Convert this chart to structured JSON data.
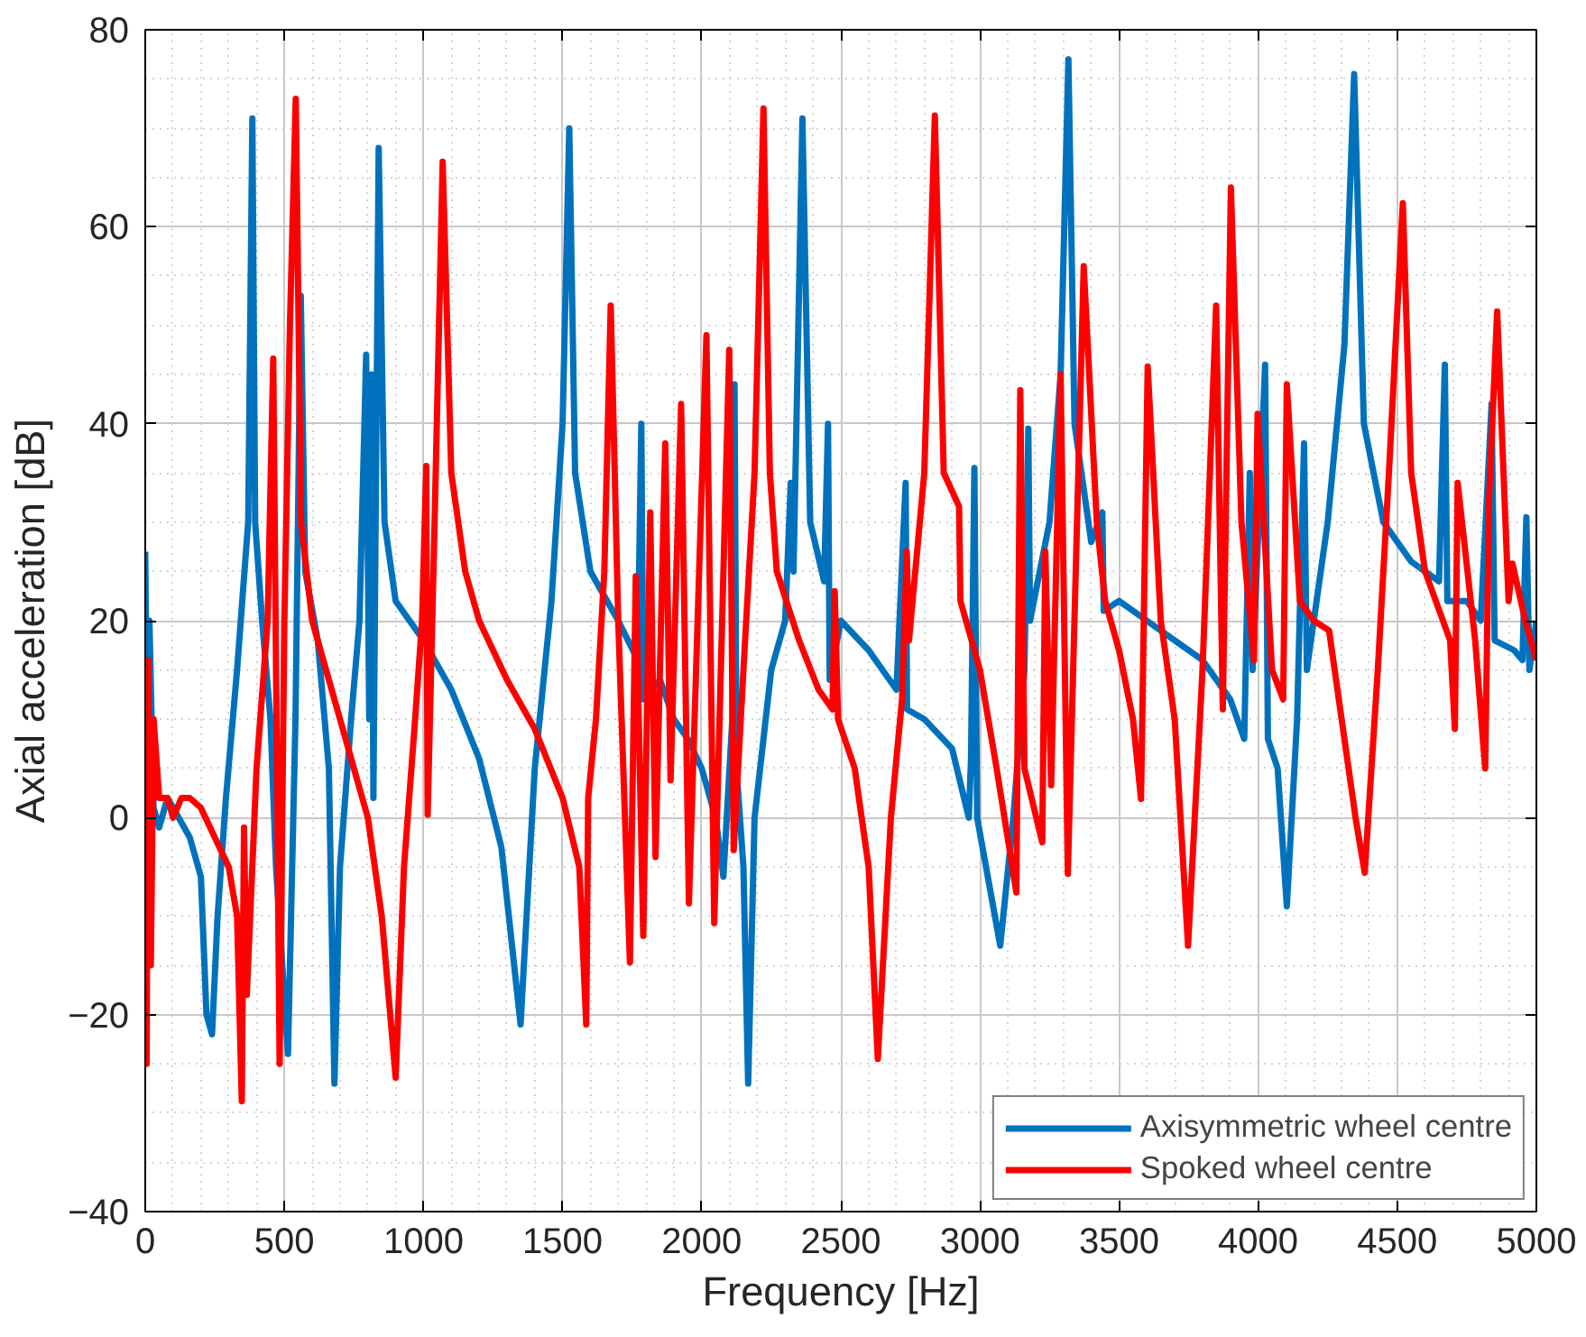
{
  "chart_data": {
    "type": "line",
    "xlabel": "Frequency [Hz]",
    "ylabel": "Axial acceleration [dB]",
    "xlim": [
      0,
      5000
    ],
    "ylim": [
      -40,
      80
    ],
    "xticks": [
      0,
      500,
      1000,
      1500,
      2000,
      2500,
      3000,
      3500,
      4000,
      4500,
      5000
    ],
    "yticks": [
      -40,
      -20,
      0,
      20,
      40,
      60,
      80
    ],
    "grid": true,
    "legend": "bottom right",
    "line_style": "solid",
    "series": [
      {
        "name": "Axisymmetric wheel centre",
        "color": "#0072bd",
        "x": [
          0,
          5,
          15,
          30,
          50,
          80,
          120,
          160,
          200,
          220,
          240,
          260,
          290,
          330,
          370,
          385,
          395,
          420,
          450,
          470,
          513,
          540,
          559,
          575,
          620,
          660,
          680,
          700,
          740,
          770,
          794,
          805,
          813,
          820,
          839,
          860,
          900,
          1000,
          1100,
          1200,
          1280,
          1349,
          1400,
          1460,
          1500,
          1524,
          1545,
          1600,
          1700,
          1770,
          1783,
          1790,
          1850,
          1900,
          1950,
          2000,
          2050,
          2078,
          2110,
          2118,
          2125,
          2150,
          2167,
          2190,
          2250,
          2300,
          2320,
          2330,
          2362,
          2390,
          2440,
          2454,
          2460,
          2500,
          2600,
          2700,
          2733,
          2738,
          2800,
          2900,
          2960,
          2968,
          2980,
          2990,
          3073,
          3120,
          3160,
          3174,
          3180,
          3250,
          3290,
          3318,
          3340,
          3400,
          3440,
          3445,
          3500,
          3600,
          3700,
          3800,
          3900,
          3950,
          3970,
          3980,
          4025,
          4035,
          4070,
          4103,
          4140,
          4165,
          4175,
          4200,
          4250,
          4310,
          4345,
          4380,
          4450,
          4550,
          4650,
          4671,
          4680,
          4750,
          4800,
          4839,
          4850,
          4920,
          4950,
          4964,
          4975,
          5000
        ],
        "values": [
          27,
          10,
          20,
          1,
          -1,
          2,
          0,
          -2,
          -6,
          -20,
          -22,
          -10,
          2,
          15,
          30,
          71,
          30,
          20,
          10,
          -5,
          -24,
          10,
          53,
          25,
          18,
          5,
          -27,
          -5,
          10,
          20,
          47,
          10,
          45,
          2,
          68,
          30,
          22,
          18,
          13,
          6,
          -3,
          -21,
          5,
          22,
          40,
          70,
          35,
          25,
          20,
          16,
          40,
          12,
          14,
          10,
          8,
          5,
          0,
          -6,
          10,
          44,
          5,
          -5,
          -27,
          0,
          15,
          20,
          34,
          25,
          71,
          30,
          24,
          40,
          14,
          20,
          17,
          13,
          34,
          11,
          10,
          7,
          0,
          6,
          35.5,
          0,
          -13,
          0,
          15,
          39.5,
          20,
          30,
          45,
          77,
          40,
          28,
          31,
          21,
          22,
          20,
          18,
          16,
          12,
          8,
          35,
          15,
          46,
          8,
          5,
          -9,
          10,
          38,
          15,
          20,
          30,
          48,
          75.5,
          40,
          30,
          26,
          24,
          46,
          22,
          22,
          20,
          42,
          18,
          17,
          16,
          30.5,
          15,
          20
        ]
      },
      {
        "name": "Spoked wheel centre",
        "color": "#ff0000",
        "x": [
          0,
          5,
          10,
          20,
          30,
          50,
          80,
          100,
          130,
          160,
          200,
          250,
          300,
          330,
          347,
          355,
          365,
          400,
          440,
          460,
          483,
          500,
          520,
          541,
          560,
          600,
          650,
          700,
          750,
          800,
          850,
          900,
          930,
          970,
          995,
          1010,
          1015,
          1040,
          1069,
          1100,
          1150,
          1200,
          1300,
          1400,
          1500,
          1560,
          1585,
          1592,
          1620,
          1650,
          1673,
          1700,
          1742,
          1763,
          1790,
          1815,
          1834,
          1869,
          1888,
          1926,
          1954,
          2017,
          2045,
          2099,
          2115,
          2150,
          2190,
          2222,
          2245,
          2270,
          2350,
          2420,
          2470,
          2478,
          2490,
          2550,
          2600,
          2633,
          2680,
          2720,
          2737,
          2745,
          2800,
          2838,
          2870,
          2925,
          2930,
          3000,
          3060,
          3131,
          3145,
          3160,
          3224,
          3235,
          3256,
          3290,
          3316,
          3373,
          3420,
          3450,
          3500,
          3550,
          3579,
          3603,
          3650,
          3700,
          3748,
          3800,
          3849,
          3873,
          3902,
          3940,
          3985,
          3998,
          4050,
          4090,
          4103,
          4150,
          4200,
          4255,
          4300,
          4350,
          4383,
          4430,
          4470,
          4520,
          4550,
          4600,
          4690,
          4707,
          4717,
          4780,
          4816,
          4830,
          4859,
          4900,
          4914,
          4960,
          5000
        ],
        "values": [
          16,
          -25,
          16,
          -15,
          10,
          2,
          2,
          0,
          2,
          2,
          1,
          -2,
          -5,
          -10,
          -28.8,
          -1,
          -18,
          5,
          20,
          46.6,
          -25,
          20,
          50,
          73,
          30,
          20,
          15,
          10,
          5,
          0,
          -10,
          -26.4,
          -5,
          10,
          20,
          35.7,
          0.3,
          30,
          66.6,
          35,
          25,
          20,
          14,
          9,
          2,
          -5,
          -21,
          2,
          10,
          25,
          52,
          20,
          -14.7,
          24.5,
          -12,
          31,
          -4,
          38,
          3.8,
          42,
          -8.7,
          49,
          -10.7,
          47.5,
          -3.3,
          15,
          35,
          72,
          35,
          25,
          18,
          13,
          11,
          23,
          10,
          5,
          -5,
          -24.5,
          0,
          12,
          27,
          18,
          35,
          71.3,
          35,
          31.6,
          22,
          15,
          5,
          -7.6,
          43.4,
          5,
          -2.5,
          27,
          3.3,
          45,
          -5.7,
          56,
          30,
          22,
          17,
          10,
          1.9,
          45.8,
          20,
          10,
          -13,
          15,
          52,
          11,
          64,
          30,
          16,
          41,
          15,
          12,
          44,
          22,
          20,
          19,
          10,
          0,
          -5.6,
          15,
          35,
          62.4,
          35,
          25,
          18,
          9,
          34,
          18,
          5,
          32.5,
          51.4,
          22,
          25.8,
          20,
          16
        ]
      }
    ]
  }
}
